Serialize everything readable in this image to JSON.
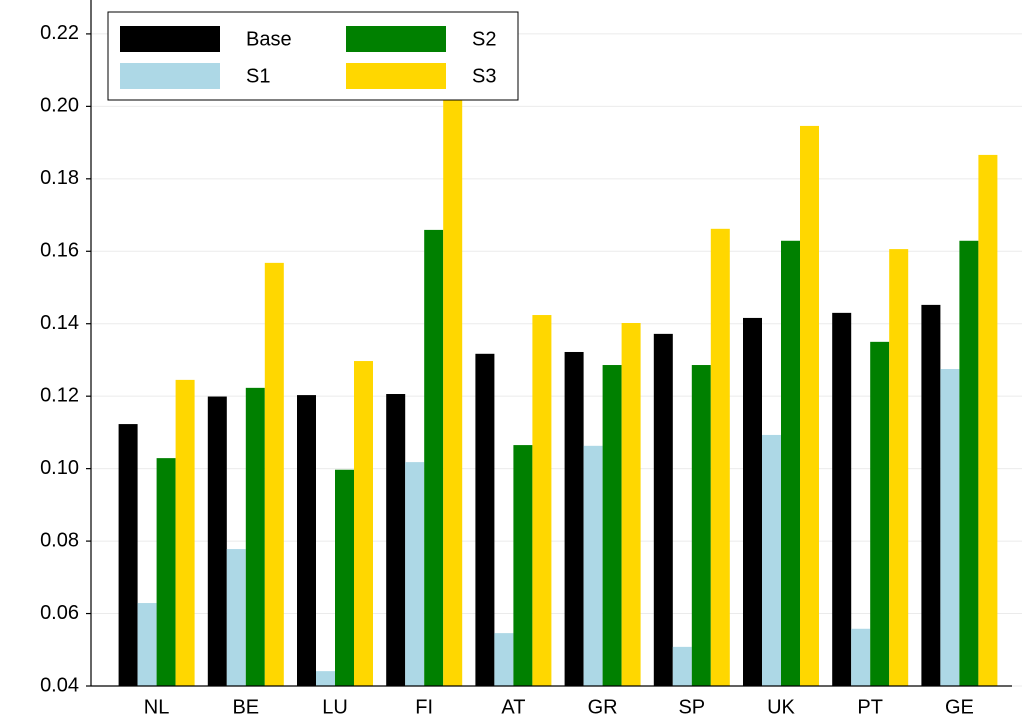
{
  "chart_data": {
    "type": "bar",
    "categories": [
      "NL",
      "BE",
      "LU",
      "FI",
      "AT",
      "GR",
      "SP",
      "UK",
      "PT",
      "GE"
    ],
    "series": [
      {
        "name": "Base",
        "color": "#000000",
        "values": [
          0.1123,
          0.1199,
          0.1203,
          0.1206,
          0.1317,
          0.1322,
          0.1372,
          0.1416,
          0.143,
          0.1452
        ]
      },
      {
        "name": "S1",
        "color": "#add8e6",
        "values": [
          0.0629,
          0.0778,
          0.0441,
          0.1018,
          0.0546,
          0.1063,
          0.0508,
          0.1093,
          0.0558,
          0.1275
        ]
      },
      {
        "name": "S2",
        "color": "#008000",
        "values": [
          0.1029,
          0.1223,
          0.0997,
          0.1659,
          0.1065,
          0.1286,
          0.1286,
          0.1629,
          0.135,
          0.1629
        ]
      },
      {
        "name": "S3",
        "color": "#ffd700",
        "values": [
          0.1245,
          0.1568,
          0.1297,
          0.2018,
          0.1424,
          0.1402,
          0.1662,
          0.1946,
          0.1606,
          0.1866
        ]
      }
    ],
    "ylim": [
      0.04,
      0.2266
    ],
    "yticks": [
      0.04,
      0.06,
      0.08,
      {
        "value": 0.1,
        "label": "0.10"
      },
      0.12,
      0.14,
      0.16,
      0.18,
      {
        "value": 0.2,
        "label": "0.20"
      },
      0.22
    ],
    "grid": true,
    "legend": "upper left"
  }
}
